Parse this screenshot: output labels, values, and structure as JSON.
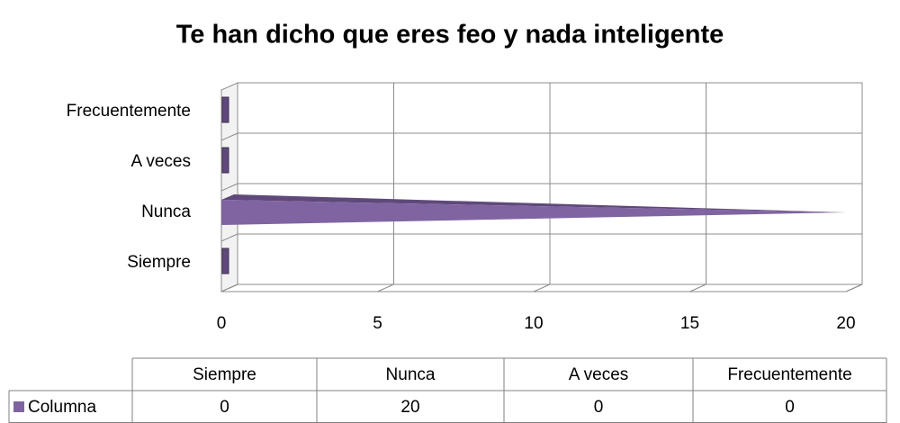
{
  "chart_data": {
    "type": "bar",
    "orientation": "horizontal",
    "title": "Te han dicho que eres feo y nada inteligente",
    "categories": [
      "Siempre",
      "Nunca",
      "A veces",
      "Frecuentemente"
    ],
    "series": [
      {
        "name": "Columna",
        "color": "#8064a2",
        "values": [
          0,
          20,
          0,
          0
        ]
      }
    ],
    "xlim": [
      0,
      20
    ],
    "xticks": [
      0,
      5,
      10,
      15,
      20
    ],
    "grid": true,
    "data_table": true
  }
}
